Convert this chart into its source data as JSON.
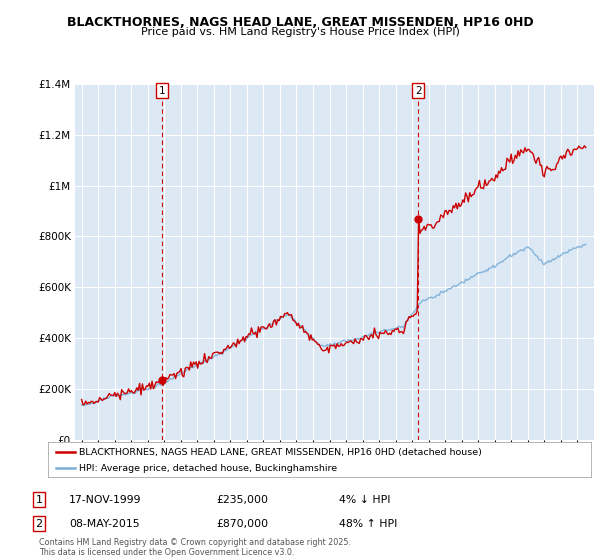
{
  "title": "BLACKTHORNES, NAGS HEAD LANE, GREAT MISSENDEN, HP16 0HD",
  "subtitle": "Price paid vs. HM Land Registry's House Price Index (HPI)",
  "legend_label_red": "BLACKTHORNES, NAGS HEAD LANE, GREAT MISSENDEN, HP16 0HD (detached house)",
  "legend_label_blue": "HPI: Average price, detached house, Buckinghamshire",
  "annotation1_label": "1",
  "annotation1_date": "17-NOV-1999",
  "annotation1_price": "£235,000",
  "annotation1_pct": "4% ↓ HPI",
  "annotation2_label": "2",
  "annotation2_date": "08-MAY-2015",
  "annotation2_price": "£870,000",
  "annotation2_pct": "48% ↑ HPI",
  "footer": "Contains HM Land Registry data © Crown copyright and database right 2025.\nThis data is licensed under the Open Government Licence v3.0.",
  "ylim": [
    0,
    1400000
  ],
  "yticks": [
    0,
    200000,
    400000,
    600000,
    800000,
    1000000,
    1200000,
    1400000
  ],
  "background_color": "#ffffff",
  "plot_bg_color": "#dce9f5",
  "grid_color": "#ffffff",
  "red_color": "#cc0000",
  "blue_color": "#7aaed6",
  "t1": 1999.88,
  "t2": 2015.36,
  "sale1_price": 235000,
  "sale2_price": 870000
}
